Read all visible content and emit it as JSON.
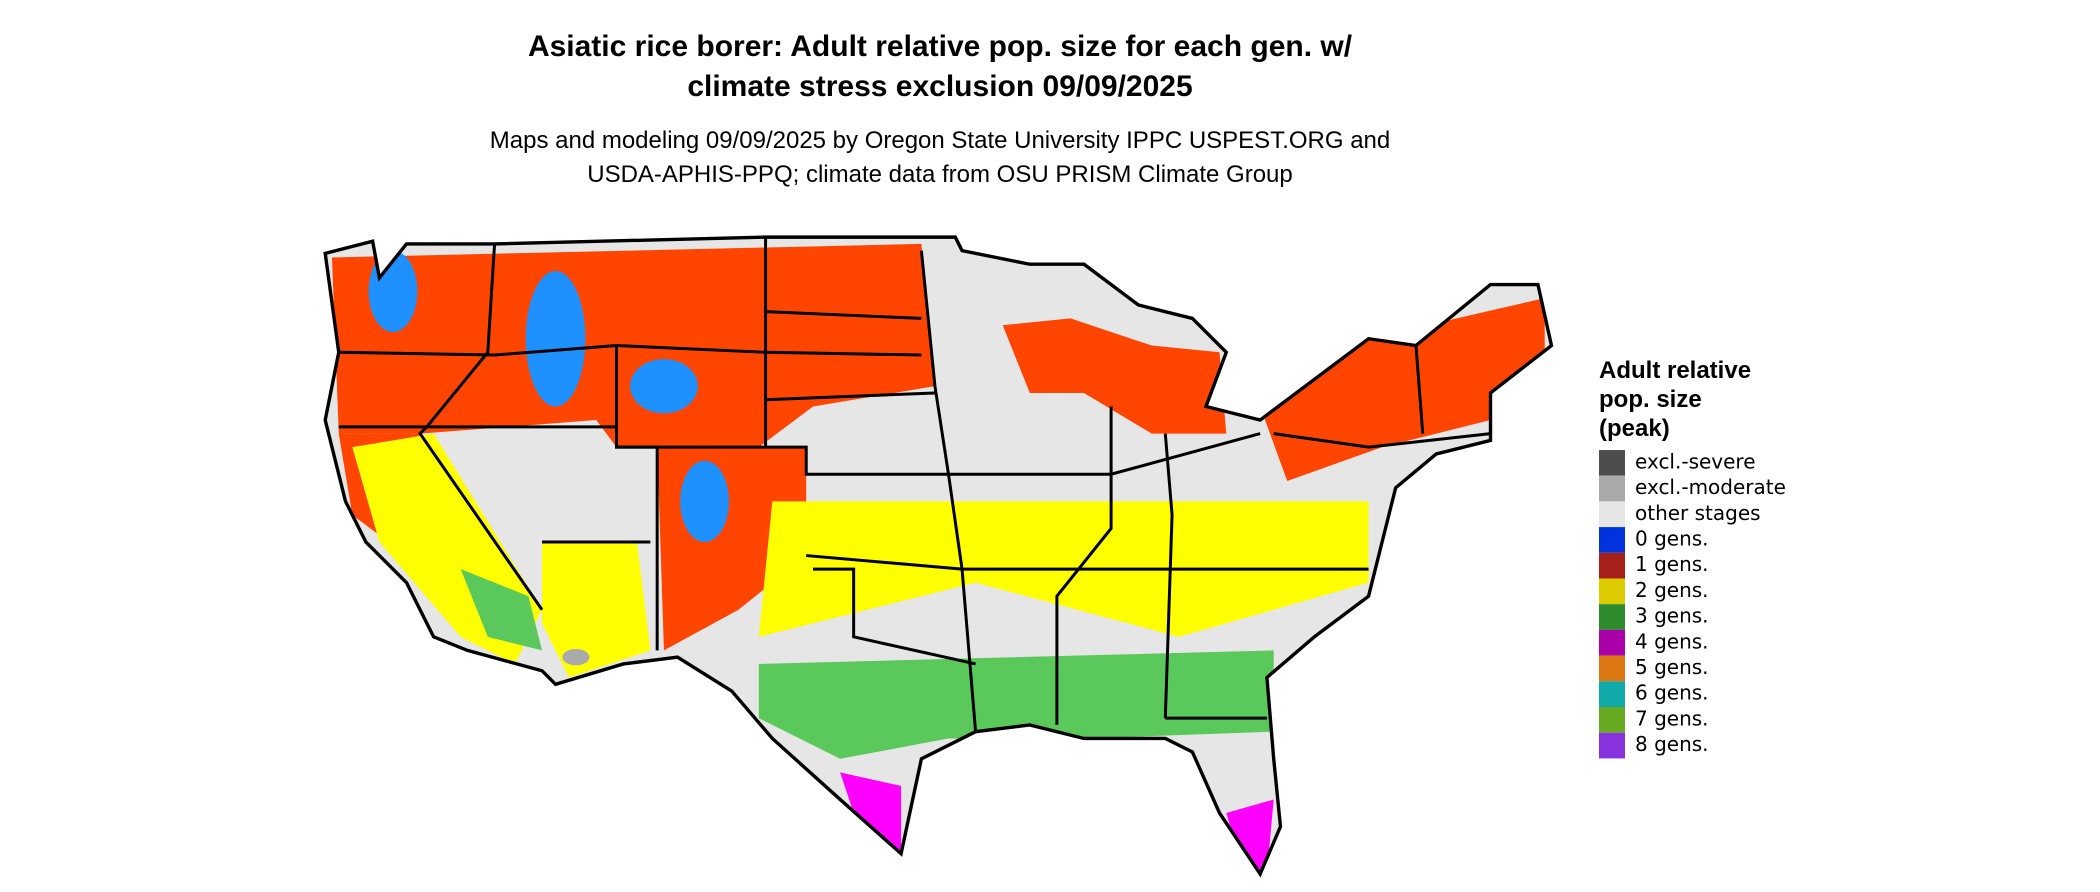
{
  "header": {
    "title_lines": [
      "Asiatic rice borer: Adult relative pop. size for each gen. w/",
      "climate stress exclusion 09/09/2025"
    ],
    "subtitle_lines": [
      "Maps and modeling 09/09/2025 by Oregon State University IPPC USPEST.ORG and",
      "USDA-APHIS-PPQ; climate data from OSU PRISM Climate Group"
    ]
  },
  "legend": {
    "title_lines": [
      "Adult relative",
      "pop. size",
      "(peak)"
    ],
    "items": [
      {
        "label": "excl.-severe",
        "color": "#4d4d4d"
      },
      {
        "label": "excl.-moderate",
        "color": "#aaaaaa"
      },
      {
        "label": "other stages",
        "color": "#e6e6e6"
      },
      {
        "label": "0 gens.",
        "color": "#0033dd"
      },
      {
        "label": "1 gens.",
        "color": "#a8201a"
      },
      {
        "label": "2 gens.",
        "color": "#ddcc00"
      },
      {
        "label": "3 gens.",
        "color": "#2e8b2e"
      },
      {
        "label": "4 gens.",
        "color": "#aa00aa"
      },
      {
        "label": "5 gens.",
        "color": "#dd7711"
      },
      {
        "label": "6 gens.",
        "color": "#11aaaa"
      },
      {
        "label": "7 gens.",
        "color": "#66aa22"
      },
      {
        "label": "8 gens.",
        "color": "#8833dd"
      }
    ]
  }
}
